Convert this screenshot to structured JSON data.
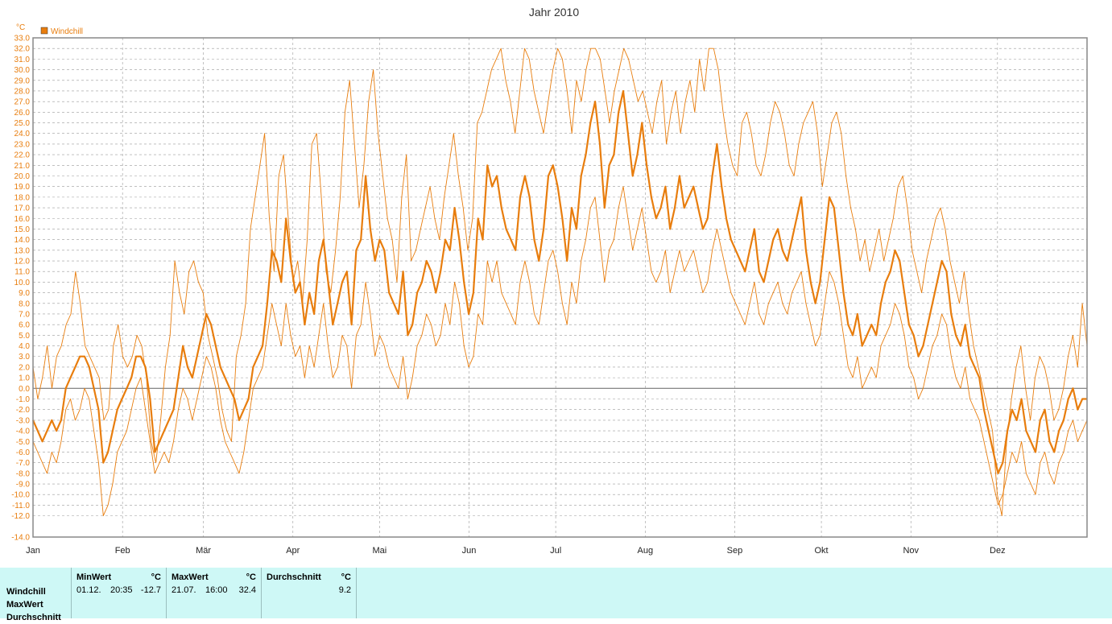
{
  "chart_data": {
    "type": "line",
    "title": "Jahr 2010",
    "unit": "°C",
    "legend": [
      {
        "name": "Windchill",
        "color": "#e87d0d"
      }
    ],
    "ylim": [
      -14,
      33
    ],
    "yticks": [
      "33.0",
      "32.0",
      "31.0",
      "30.0",
      "29.0",
      "28.0",
      "27.0",
      "26.0",
      "25.0",
      "24.0",
      "23.0",
      "22.0",
      "21.0",
      "20.0",
      "19.0",
      "18.0",
      "17.0",
      "16.0",
      "15.0",
      "14.0",
      "13.0",
      "12.0",
      "11.0",
      "10.0",
      "9.0",
      "8.0",
      "7.0",
      "6.0",
      "5.0",
      "4.0",
      "3.0",
      "2.0",
      "1.0",
      "0.0",
      "-1.0",
      "-2.0",
      "-3.0",
      "-4.0",
      "-5.0",
      "-6.0",
      "-7.0",
      "-8.0",
      "-9.0",
      "-10.0",
      "-11.0",
      "-12.0",
      "-14.0"
    ],
    "months": [
      "Jan",
      "Feb",
      "Mär",
      "Apr",
      "Mai",
      "Jun",
      "Jul",
      "Aug",
      "Sep",
      "Okt",
      "Nov",
      "Dez"
    ],
    "series": [
      {
        "name": "Windchill",
        "role": "mean",
        "color": "#e87d0d",
        "values": [
          -3,
          -4,
          -5,
          -4,
          -3,
          -4,
          -3,
          0,
          1,
          2,
          3,
          3,
          2,
          0,
          -2,
          -7,
          -6,
          -4,
          -2,
          -1,
          0,
          1,
          3,
          3,
          2,
          -1,
          -6,
          -5,
          -4,
          -3,
          -2,
          1,
          4,
          2,
          1,
          3,
          5,
          7,
          6,
          4,
          2,
          1,
          0,
          -1,
          -3,
          -2,
          -1,
          2,
          3,
          4,
          8,
          13,
          12,
          10,
          16,
          12,
          9,
          10,
          6,
          9,
          7,
          12,
          14,
          10,
          6,
          8,
          10,
          11,
          6,
          13,
          14,
          20,
          15,
          12,
          14,
          13,
          9,
          8,
          7,
          11,
          5,
          6,
          9,
          10,
          12,
          11,
          9,
          11,
          14,
          13,
          17,
          14,
          10,
          7,
          9,
          16,
          14,
          21,
          19,
          20,
          17,
          15,
          14,
          13,
          18,
          20,
          18,
          14,
          12,
          15,
          20,
          21,
          19,
          16,
          12,
          17,
          15,
          20,
          22,
          25,
          27,
          23,
          17,
          21,
          22,
          26,
          28,
          24,
          20,
          22,
          25,
          21,
          18,
          16,
          17,
          19,
          15,
          17,
          20,
          17,
          18,
          19,
          17,
          15,
          16,
          20,
          23,
          19,
          16,
          14,
          13,
          12,
          11,
          13,
          15,
          11,
          10,
          12,
          14,
          15,
          13,
          12,
          14,
          16,
          18,
          13,
          10,
          8,
          10,
          14,
          18,
          17,
          13,
          9,
          6,
          5,
          7,
          4,
          5,
          6,
          5,
          8,
          10,
          11,
          13,
          12,
          9,
          6,
          5,
          3,
          4,
          6,
          8,
          10,
          12,
          11,
          7,
          5,
          4,
          6,
          3,
          2,
          1,
          -2,
          -4,
          -6,
          -8,
          -7,
          -4,
          -2,
          -3,
          -1,
          -4,
          -5,
          -6,
          -3,
          -2,
          -5,
          -6,
          -4,
          -3,
          -1,
          0,
          -2,
          -1,
          -1
        ]
      },
      {
        "name": "Windchill",
        "role": "max",
        "color": "#e87d0d",
        "values": [
          2,
          -1,
          1,
          4,
          0,
          3,
          4,
          6,
          7,
          11,
          8,
          4,
          3,
          2,
          1,
          -3,
          -2,
          4,
          6,
          3,
          2,
          3,
          5,
          4,
          1,
          -5,
          -7,
          -3,
          2,
          5,
          12,
          9,
          7,
          11,
          12,
          10,
          9,
          5,
          3,
          1,
          -2,
          -4,
          -5,
          3,
          5,
          8,
          15,
          18,
          21,
          24,
          16,
          11,
          20,
          22,
          16,
          10,
          12,
          8,
          14,
          23,
          24,
          18,
          11,
          9,
          13,
          18,
          26,
          29,
          23,
          17,
          21,
          27,
          30,
          24,
          20,
          16,
          14,
          10,
          18,
          22,
          12,
          13,
          15,
          17,
          19,
          16,
          14,
          18,
          21,
          24,
          20,
          17,
          13,
          16,
          25,
          26,
          28,
          30,
          31,
          32,
          29,
          27,
          24,
          28,
          32,
          31,
          28,
          26,
          24,
          27,
          30,
          32,
          31,
          28,
          24,
          29,
          27,
          30,
          32,
          32,
          31,
          28,
          25,
          28,
          30,
          32,
          31,
          29,
          27,
          28,
          26,
          24,
          27,
          29,
          23,
          26,
          28,
          24,
          27,
          29,
          26,
          31,
          28,
          32,
          32,
          30,
          26,
          23,
          21,
          20,
          25,
          26,
          24,
          21,
          20,
          22,
          25,
          27,
          26,
          24,
          21,
          20,
          23,
          25,
          26,
          27,
          24,
          19,
          22,
          25,
          26,
          24,
          20,
          17,
          15,
          12,
          14,
          11,
          13,
          15,
          12,
          14,
          16,
          19,
          20,
          17,
          13,
          11,
          9,
          12,
          14,
          16,
          17,
          15,
          12,
          10,
          8,
          11,
          7,
          4,
          2,
          0,
          -2,
          -4,
          -10,
          -12,
          -5,
          -1,
          2,
          4,
          0,
          -3,
          1,
          3,
          2,
          0,
          -3,
          -2,
          0,
          3,
          5,
          2,
          8,
          4
        ]
      },
      {
        "name": "Windchill",
        "role": "min",
        "color": "#e87d0d",
        "values": [
          -5,
          -6,
          -7,
          -8,
          -6,
          -7,
          -5,
          -2,
          -1,
          -3,
          -2,
          0,
          -1,
          -4,
          -7,
          -12,
          -11,
          -9,
          -6,
          -5,
          -4,
          -2,
          0,
          1,
          -2,
          -5,
          -8,
          -7,
          -6,
          -7,
          -5,
          -2,
          0,
          -1,
          -3,
          -1,
          1,
          3,
          2,
          0,
          -3,
          -5,
          -6,
          -7,
          -8,
          -6,
          -3,
          0,
          1,
          2,
          5,
          8,
          6,
          4,
          8,
          5,
          3,
          4,
          1,
          4,
          2,
          5,
          8,
          4,
          1,
          2,
          5,
          4,
          0,
          5,
          6,
          10,
          7,
          3,
          5,
          4,
          2,
          1,
          0,
          3,
          -1,
          1,
          4,
          5,
          7,
          6,
          4,
          5,
          8,
          6,
          10,
          8,
          4,
          2,
          3,
          7,
          6,
          12,
          10,
          12,
          9,
          8,
          7,
          6,
          10,
          12,
          10,
          7,
          6,
          9,
          12,
          13,
          11,
          8,
          6,
          10,
          8,
          12,
          14,
          17,
          18,
          14,
          10,
          13,
          14,
          17,
          19,
          16,
          13,
          15,
          17,
          14,
          11,
          10,
          11,
          13,
          9,
          11,
          13,
          11,
          12,
          13,
          11,
          9,
          10,
          13,
          15,
          13,
          11,
          9,
          8,
          7,
          6,
          8,
          10,
          7,
          6,
          8,
          9,
          10,
          8,
          7,
          9,
          10,
          11,
          8,
          6,
          4,
          5,
          8,
          11,
          10,
          8,
          5,
          2,
          1,
          3,
          0,
          1,
          2,
          1,
          4,
          5,
          6,
          8,
          7,
          5,
          2,
          1,
          -1,
          0,
          2,
          4,
          5,
          7,
          6,
          3,
          1,
          0,
          2,
          -1,
          -2,
          -3,
          -5,
          -7,
          -9,
          -11,
          -10,
          -8,
          -6,
          -7,
          -5,
          -8,
          -9,
          -10,
          -7,
          -6,
          -8,
          -9,
          -7,
          -6,
          -4,
          -3,
          -5,
          -4,
          -3
        ]
      }
    ]
  },
  "stats": {
    "row_labels": [
      "Windchill",
      "MaxWert",
      "Durchschnitt"
    ],
    "min": {
      "header": "MinWert",
      "unit": "°C",
      "date": "01.12.",
      "time": "20:35",
      "value": "-12.7"
    },
    "max": {
      "header": "MaxWert",
      "unit": "°C",
      "date": "21.07.",
      "time": "16:00",
      "value": "32.4"
    },
    "avg": {
      "header": "Durchschnitt",
      "unit": "°C",
      "value": "9.2"
    }
  }
}
